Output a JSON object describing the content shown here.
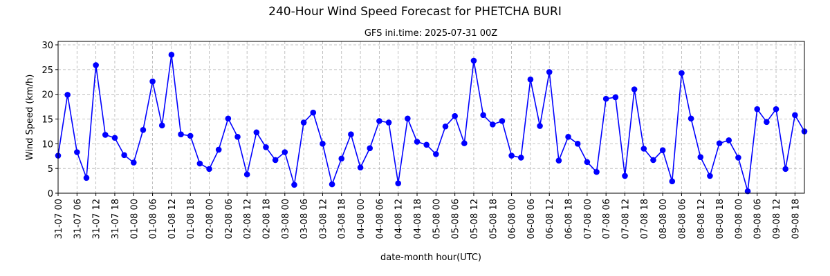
{
  "chart_data": {
    "type": "line",
    "title": "240-Hour Wind Speed Forecast for PHETCHA BURI",
    "subtitle": "GFS ini.time: 2025-07-31 00Z",
    "x_label": "date-month hour(UTC)",
    "y_label": "Wind Speed (km/h)",
    "categories": [
      "31-07 00",
      null,
      "31-07 06",
      null,
      "31-07 12",
      null,
      "31-07 18",
      null,
      "01-08 00",
      null,
      "01-08 06",
      null,
      "01-08 12",
      null,
      "01-08 18",
      null,
      "02-08 00",
      null,
      "02-08 06",
      null,
      "02-08 12",
      null,
      "02-08 18",
      null,
      "03-08 00",
      null,
      "03-08 06",
      null,
      "03-08 12",
      null,
      "03-08 18",
      null,
      "04-08 00",
      null,
      "04-08 06",
      null,
      "04-08 12",
      null,
      "04-08 18",
      null,
      "05-08 00",
      null,
      "05-08 06",
      null,
      "05-08 12",
      null,
      "05-08 18",
      null,
      "06-08 00",
      null,
      "06-08 06",
      null,
      "06-08 12",
      null,
      "06-08 18",
      null,
      "07-08 00",
      null,
      "07-08 06",
      null,
      "07-08 12",
      null,
      "07-08 18",
      null,
      "08-08 00",
      null,
      "08-08 06",
      null,
      "08-08 12",
      null,
      "08-08 18",
      null,
      "09-08 00",
      null,
      "09-08 06",
      null,
      "09-08 12",
      null,
      "09-08 18",
      null
    ],
    "series": [
      {
        "name": "Wind Speed",
        "color": "#0000ff",
        "values": [
          7.6,
          19.9,
          8.3,
          3.1,
          25.9,
          11.8,
          11.2,
          7.7,
          6.2,
          12.8,
          22.6,
          13.7,
          28.0,
          11.9,
          11.6,
          6.0,
          4.9,
          8.8,
          15.1,
          11.4,
          3.8,
          12.3,
          9.3,
          6.7,
          8.3,
          1.7,
          14.3,
          16.3,
          10.0,
          1.8,
          7.0,
          11.9,
          5.2,
          9.1,
          14.6,
          14.3,
          2.0,
          15.1,
          10.4,
          9.8,
          7.9,
          13.5,
          15.6,
          10.1,
          26.8,
          15.8,
          13.9,
          14.6,
          7.6,
          7.2,
          23.0,
          13.6,
          24.5,
          6.6,
          11.4,
          10.0,
          6.3,
          4.3,
          19.1,
          19.4,
          3.5,
          21.0,
          9.0,
          6.7,
          8.7,
          2.4,
          24.3,
          15.1,
          7.3,
          3.5,
          10.1,
          10.7,
          7.2,
          0.4,
          17.0,
          14.4,
          17.0,
          4.9,
          15.8,
          12.5
        ]
      }
    ],
    "ylim": [
      0,
      30.7
    ],
    "yticks": [
      0,
      5,
      10,
      15,
      20,
      25,
      30
    ],
    "grid": true
  }
}
